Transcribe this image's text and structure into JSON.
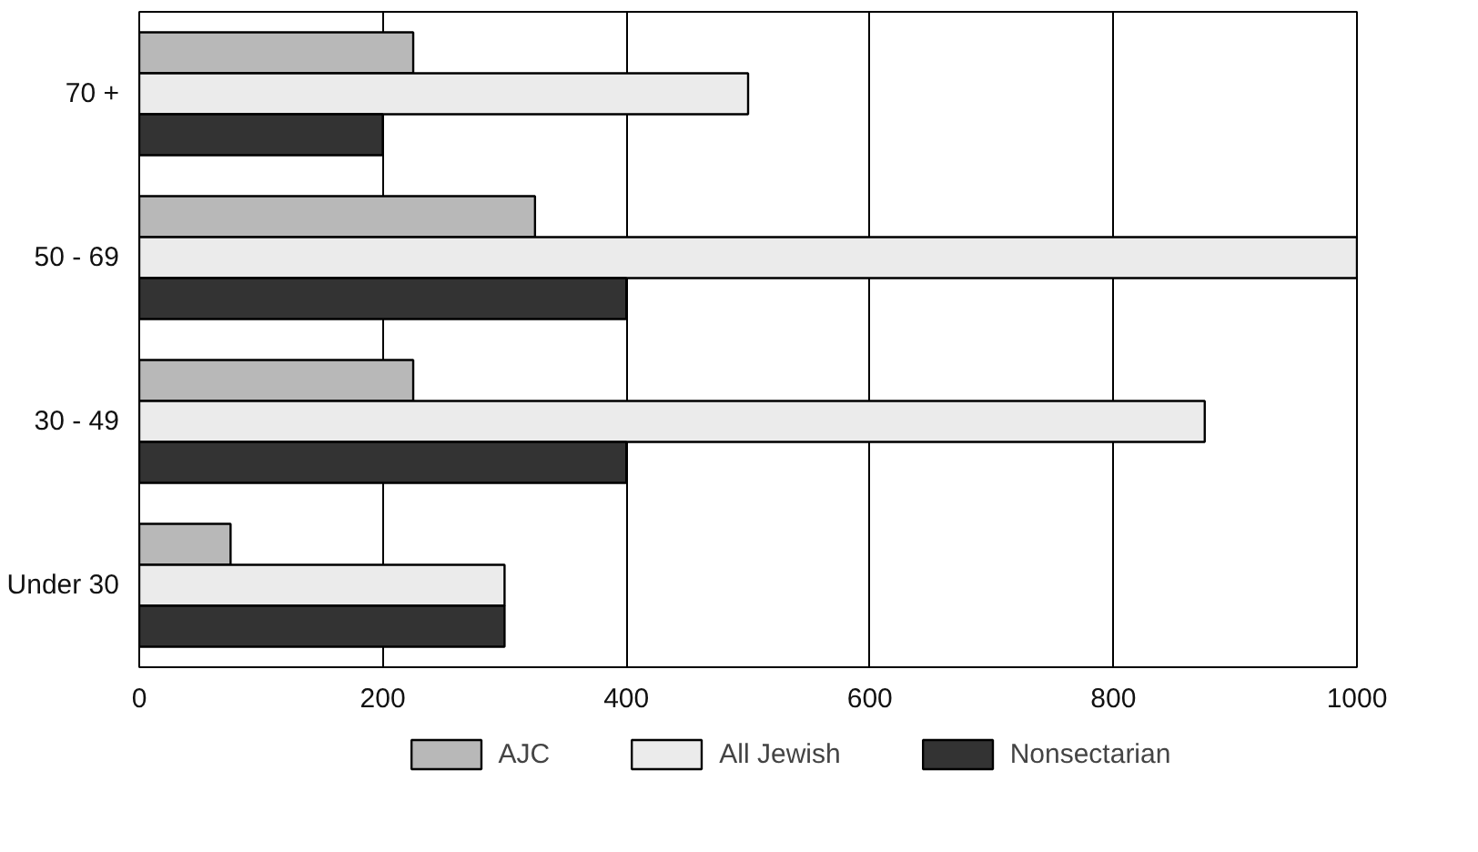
{
  "chart_data": {
    "type": "bar",
    "orientation": "horizontal",
    "categories": [
      "70 +",
      "50 - 69",
      "30 - 49",
      "Under 30"
    ],
    "series": [
      {
        "name": "AJC",
        "color": "#b8b8b8",
        "values": [
          225,
          325,
          225,
          75
        ]
      },
      {
        "name": "All Jewish",
        "color": "#ebebeb",
        "values": [
          500,
          1000,
          875,
          300
        ]
      },
      {
        "name": "Nonsectarian",
        "color": "#333333",
        "values": [
          200,
          400,
          400,
          300
        ]
      }
    ],
    "xlim": [
      0,
      1000
    ],
    "xticks": [
      0,
      200,
      400,
      600,
      800,
      1000
    ],
    "grid": "x",
    "legend": "bottom"
  }
}
